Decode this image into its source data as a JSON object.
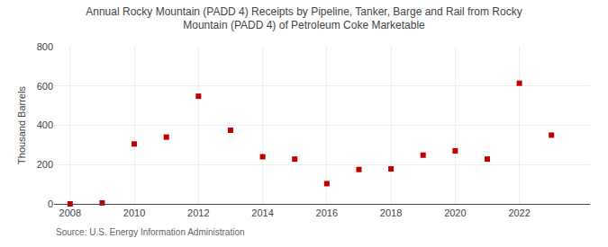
{
  "chart_data": {
    "type": "scatter",
    "title": "Annual Rocky Mountain (PADD 4) Receipts by Pipeline, Tanker, Barge and Rail from Rocky\nMountain (PADD 4) of Petroleum Coke Marketable",
    "ylabel": "Thousand Barrels",
    "annotations": [
      "Source: U.S. Energy Information Administration"
    ],
    "x": [
      2008,
      2009,
      2010,
      2011,
      2012,
      2013,
      2014,
      2015,
      2016,
      2017,
      2018,
      2019,
      2020,
      2021,
      2022,
      2023
    ],
    "values": [
      0,
      5,
      305,
      340,
      548,
      375,
      240,
      228,
      103,
      175,
      178,
      248,
      270,
      228,
      614,
      350
    ],
    "color": "#c00000",
    "marker": "square",
    "xlim": [
      2007.5,
      2024.2
    ],
    "xticks": [
      2008,
      2010,
      2012,
      2014,
      2016,
      2018,
      2020,
      2022
    ],
    "ylim": [
      0,
      800
    ],
    "yticks": [
      0,
      200,
      400,
      600,
      800
    ],
    "grid": true
  }
}
